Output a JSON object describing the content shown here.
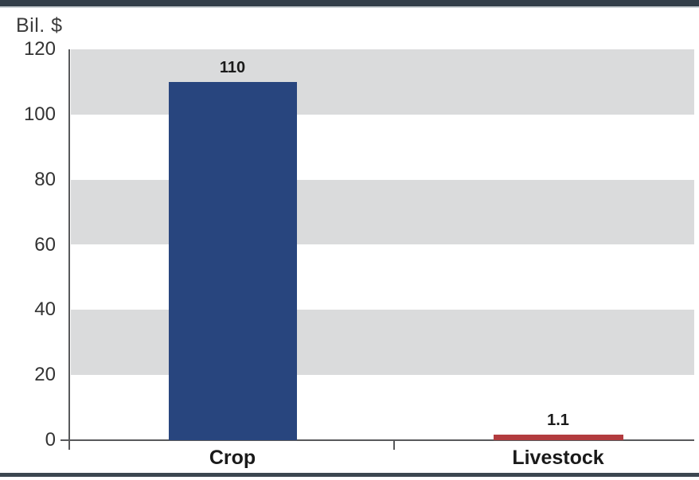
{
  "page": {
    "top_bar_color": "#333e49",
    "bottom_bar_color": "#3c4650",
    "axis_color": "#58595b"
  },
  "chart_data": {
    "type": "bar",
    "title": "",
    "ylabel": "Bil. $",
    "xlabel": "",
    "categories": [
      "Crop",
      "Livestock"
    ],
    "values": [
      110,
      1.1
    ],
    "value_labels": [
      "110",
      "1.1"
    ],
    "bar_colors": [
      "#28457e",
      "#b23b3e"
    ],
    "ylim": [
      0,
      120
    ],
    "yticks": [
      0,
      20,
      40,
      60,
      80,
      100,
      120
    ],
    "gridband_ranges": [
      [
        100,
        120
      ],
      [
        60,
        80
      ],
      [
        20,
        40
      ]
    ],
    "gridband_color": "#dadbdc",
    "legend": "none",
    "grid": "banded"
  }
}
